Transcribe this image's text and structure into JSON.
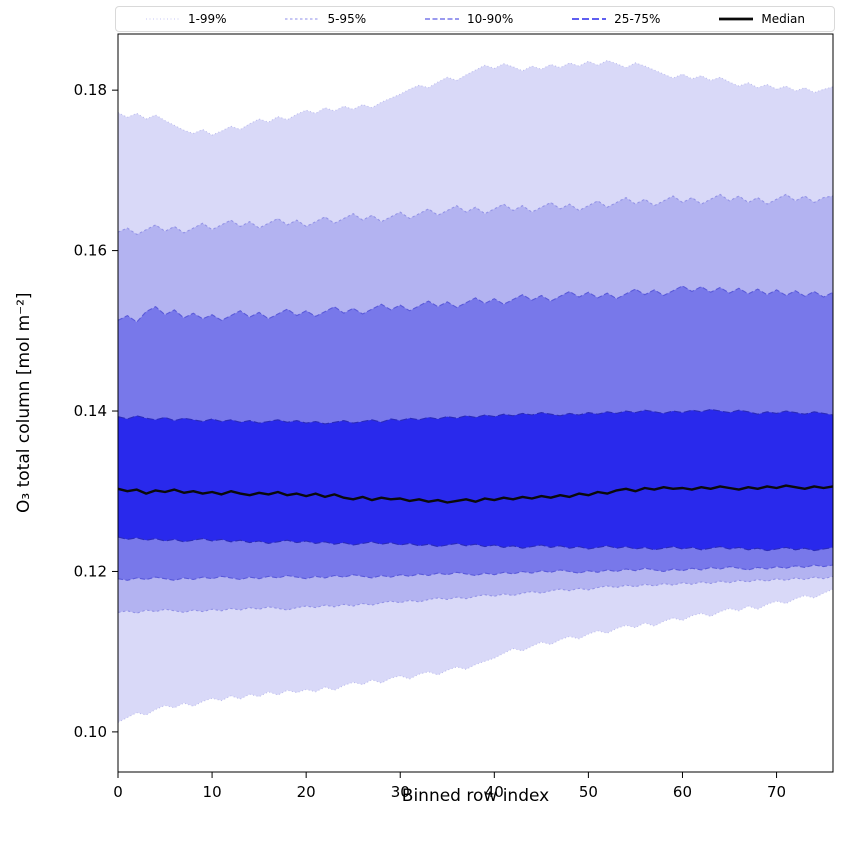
{
  "chart_data": {
    "type": "area",
    "title": "",
    "xlabel": "Binned row index",
    "ylabel": "O₃ total column [mol m⁻²]",
    "xlim": [
      0,
      76
    ],
    "ylim": [
      0.095,
      0.187
    ],
    "xticks": [
      0,
      10,
      20,
      30,
      40,
      50,
      60,
      70
    ],
    "yticks": [
      0.1,
      0.12,
      0.14,
      0.16,
      0.18
    ],
    "grid": false,
    "legend_position": "top",
    "x": [
      0,
      1,
      2,
      3,
      4,
      5,
      6,
      7,
      8,
      9,
      10,
      11,
      12,
      13,
      14,
      15,
      16,
      17,
      18,
      19,
      20,
      21,
      22,
      23,
      24,
      25,
      26,
      27,
      28,
      29,
      30,
      31,
      32,
      33,
      34,
      35,
      36,
      37,
      38,
      39,
      40,
      41,
      42,
      43,
      44,
      45,
      46,
      47,
      48,
      49,
      50,
      51,
      52,
      53,
      54,
      55,
      56,
      57,
      58,
      59,
      60,
      61,
      62,
      63,
      64,
      65,
      66,
      67,
      68,
      69,
      70,
      71,
      72,
      73,
      74,
      75,
      76
    ],
    "bands": [
      {
        "name": "1-99%",
        "fill": "#d9d9f8",
        "edge": "#bcbcee",
        "dash": "1 2.5",
        "lower": [
          0.1012,
          0.1018,
          0.1024,
          0.1021,
          0.1028,
          0.1033,
          0.103,
          0.1036,
          0.1032,
          0.1038,
          0.1042,
          0.1039,
          0.1045,
          0.1041,
          0.1047,
          0.1044,
          0.105,
          0.1046,
          0.1052,
          0.1049,
          0.1053,
          0.105,
          0.1056,
          0.1052,
          0.1058,
          0.1062,
          0.1059,
          0.1065,
          0.1061,
          0.1067,
          0.107,
          0.1066,
          0.1072,
          0.1075,
          0.1071,
          0.1077,
          0.1081,
          0.1078,
          0.1084,
          0.1088,
          0.1092,
          0.1098,
          0.1104,
          0.1101,
          0.1107,
          0.1112,
          0.1109,
          0.1115,
          0.1119,
          0.1116,
          0.1122,
          0.1126,
          0.1123,
          0.1129,
          0.1133,
          0.113,
          0.1136,
          0.1132,
          0.1138,
          0.1142,
          0.1139,
          0.1145,
          0.1148,
          0.1144,
          0.115,
          0.1154,
          0.1151,
          0.1157,
          0.1153,
          0.1159,
          0.1163,
          0.116,
          0.1166,
          0.117,
          0.1167,
          0.1173,
          0.1178
        ],
        "upper": [
          0.1772,
          0.1766,
          0.1771,
          0.1764,
          0.1769,
          0.1762,
          0.1756,
          0.175,
          0.1746,
          0.1751,
          0.1744,
          0.1749,
          0.1755,
          0.1751,
          0.1758,
          0.1764,
          0.176,
          0.1767,
          0.1763,
          0.177,
          0.1775,
          0.1771,
          0.1778,
          0.1774,
          0.178,
          0.1776,
          0.1782,
          0.1778,
          0.1785,
          0.179,
          0.1795,
          0.1801,
          0.1806,
          0.1803,
          0.181,
          0.1816,
          0.1812,
          0.1819,
          0.1825,
          0.1831,
          0.1827,
          0.1833,
          0.1829,
          0.1824,
          0.183,
          0.1826,
          0.1832,
          0.1828,
          0.1834,
          0.183,
          0.1836,
          0.1831,
          0.1837,
          0.1833,
          0.1828,
          0.1834,
          0.183,
          0.1825,
          0.182,
          0.1815,
          0.182,
          0.1814,
          0.1818,
          0.1812,
          0.1816,
          0.181,
          0.1805,
          0.1809,
          0.1803,
          0.1807,
          0.1801,
          0.1805,
          0.1799,
          0.1803,
          0.1797,
          0.1801,
          0.1804
        ]
      },
      {
        "name": "5-95%",
        "fill": "#b3b3f1",
        "edge": "#9393e6",
        "dash": "2.5 2.5",
        "lower": [
          0.1149,
          0.1151,
          0.1148,
          0.1152,
          0.115,
          0.1153,
          0.1151,
          0.1149,
          0.1152,
          0.115,
          0.1153,
          0.1151,
          0.1154,
          0.1152,
          0.1155,
          0.1153,
          0.1156,
          0.1154,
          0.1152,
          0.1155,
          0.1157,
          0.1155,
          0.1158,
          0.1156,
          0.1159,
          0.1157,
          0.116,
          0.1158,
          0.1161,
          0.1163,
          0.1161,
          0.1164,
          0.1162,
          0.1165,
          0.1167,
          0.1165,
          0.1168,
          0.1166,
          0.1169,
          0.1171,
          0.1169,
          0.1172,
          0.117,
          0.1173,
          0.1175,
          0.1173,
          0.1176,
          0.1178,
          0.1176,
          0.1179,
          0.1177,
          0.118,
          0.1182,
          0.118,
          0.1183,
          0.1181,
          0.1184,
          0.1182,
          0.1185,
          0.1183,
          0.1186,
          0.1184,
          0.1187,
          0.1185,
          0.1188,
          0.1186,
          0.1189,
          0.1187,
          0.119,
          0.1188,
          0.1191,
          0.1189,
          0.1192,
          0.119,
          0.1193,
          0.1191,
          0.1194
        ],
        "upper": [
          0.1623,
          0.1628,
          0.162,
          0.1626,
          0.1632,
          0.1624,
          0.163,
          0.1622,
          0.1628,
          0.1634,
          0.1626,
          0.1632,
          0.1638,
          0.163,
          0.1636,
          0.1628,
          0.1634,
          0.164,
          0.1632,
          0.1638,
          0.163,
          0.1636,
          0.1642,
          0.1634,
          0.164,
          0.1646,
          0.1638,
          0.1644,
          0.1636,
          0.1642,
          0.1648,
          0.164,
          0.1646,
          0.1652,
          0.1644,
          0.165,
          0.1656,
          0.1648,
          0.1654,
          0.1646,
          0.1652,
          0.1658,
          0.165,
          0.1656,
          0.1648,
          0.1654,
          0.166,
          0.1652,
          0.1658,
          0.165,
          0.1656,
          0.1662,
          0.1654,
          0.166,
          0.1666,
          0.1658,
          0.1664,
          0.1656,
          0.1662,
          0.1668,
          0.166,
          0.1666,
          0.1658,
          0.1664,
          0.167,
          0.1662,
          0.1668,
          0.166,
          0.1666,
          0.1658,
          0.1664,
          0.167,
          0.1662,
          0.1668,
          0.166,
          0.1666,
          0.1668
        ]
      },
      {
        "name": "10-90%",
        "fill": "#7878ea",
        "edge": "#5a5ad9",
        "dash": "5 2.5",
        "lower": [
          0.1191,
          0.1189,
          0.1192,
          0.119,
          0.1193,
          0.1191,
          0.1189,
          0.1192,
          0.119,
          0.1193,
          0.1191,
          0.1194,
          0.1192,
          0.119,
          0.1193,
          0.1191,
          0.1194,
          0.1192,
          0.1195,
          0.1193,
          0.1191,
          0.1194,
          0.1192,
          0.1195,
          0.1193,
          0.1196,
          0.1194,
          0.1192,
          0.1195,
          0.1193,
          0.1196,
          0.1194,
          0.1197,
          0.1195,
          0.1198,
          0.1196,
          0.1199,
          0.1197,
          0.1195,
          0.1198,
          0.1196,
          0.1199,
          0.1197,
          0.12,
          0.1198,
          0.1201,
          0.1199,
          0.1202,
          0.12,
          0.1198,
          0.1201,
          0.1199,
          0.1202,
          0.12,
          0.1203,
          0.1201,
          0.1204,
          0.1202,
          0.12,
          0.1203,
          0.1201,
          0.1204,
          0.1202,
          0.1205,
          0.1203,
          0.1206,
          0.1204,
          0.1202,
          0.1205,
          0.1203,
          0.1206,
          0.1204,
          0.1207,
          0.1205,
          0.1208,
          0.1206,
          0.1208
        ],
        "upper": [
          0.1513,
          0.1519,
          0.1511,
          0.1524,
          0.153,
          0.152,
          0.1526,
          0.1516,
          0.1522,
          0.1515,
          0.152,
          0.1513,
          0.1519,
          0.1525,
          0.1517,
          0.1523,
          0.1515,
          0.1521,
          0.1527,
          0.1519,
          0.1525,
          0.1518,
          0.1524,
          0.153,
          0.1522,
          0.1528,
          0.1521,
          0.1527,
          0.1533,
          0.1526,
          0.1532,
          0.1525,
          0.1531,
          0.1537,
          0.153,
          0.1536,
          0.1529,
          0.1535,
          0.1541,
          0.1534,
          0.154,
          0.1533,
          0.1539,
          0.1545,
          0.1538,
          0.1544,
          0.1537,
          0.1543,
          0.1549,
          0.1542,
          0.1548,
          0.1541,
          0.1547,
          0.154,
          0.1546,
          0.1552,
          0.1545,
          0.1551,
          0.1544,
          0.155,
          0.1556,
          0.1549,
          0.1555,
          0.1548,
          0.1554,
          0.1547,
          0.1553,
          0.1546,
          0.1552,
          0.1545,
          0.1551,
          0.1544,
          0.155,
          0.1543,
          0.1549,
          0.1542,
          0.1548
        ]
      },
      {
        "name": "25-75%",
        "fill": "#2929ec",
        "edge": "#2b2bb8",
        "dash": "7 3",
        "lower": [
          0.1243,
          0.124,
          0.1242,
          0.1239,
          0.1241,
          0.1238,
          0.124,
          0.1237,
          0.1239,
          0.1241,
          0.1238,
          0.124,
          0.1237,
          0.1239,
          0.1236,
          0.1238,
          0.1235,
          0.1237,
          0.1239,
          0.1236,
          0.1238,
          0.1235,
          0.1237,
          0.1234,
          0.1236,
          0.1233,
          0.1235,
          0.1237,
          0.1234,
          0.1236,
          0.1233,
          0.1235,
          0.1232,
          0.1234,
          0.1231,
          0.1233,
          0.1235,
          0.1232,
          0.1234,
          0.1231,
          0.1233,
          0.123,
          0.1232,
          0.1229,
          0.1231,
          0.1233,
          0.123,
          0.1232,
          0.1229,
          0.1231,
          0.1228,
          0.123,
          0.1232,
          0.1229,
          0.1231,
          0.1228,
          0.123,
          0.1227,
          0.1229,
          0.1231,
          0.1228,
          0.123,
          0.1227,
          0.1229,
          0.1231,
          0.1228,
          0.123,
          0.1227,
          0.1229,
          0.1226,
          0.1228,
          0.123,
          0.1227,
          0.1229,
          0.1226,
          0.1228,
          0.123
        ],
        "upper": [
          0.1393,
          0.139,
          0.1394,
          0.1391,
          0.1389,
          0.1392,
          0.1388,
          0.1391,
          0.1389,
          0.1387,
          0.139,
          0.1387,
          0.1389,
          0.1386,
          0.1388,
          0.1385,
          0.1387,
          0.1389,
          0.1386,
          0.1388,
          0.1385,
          0.1387,
          0.1384,
          0.1386,
          0.1388,
          0.1385,
          0.1387,
          0.1389,
          0.1386,
          0.139,
          0.1388,
          0.1391,
          0.1389,
          0.1392,
          0.139,
          0.1393,
          0.1391,
          0.1394,
          0.1392,
          0.1395,
          0.1393,
          0.1396,
          0.1394,
          0.1397,
          0.1395,
          0.1398,
          0.1396,
          0.1394,
          0.1397,
          0.1395,
          0.1398,
          0.1396,
          0.1399,
          0.1397,
          0.14,
          0.1398,
          0.1401,
          0.1399,
          0.1397,
          0.14,
          0.1398,
          0.1401,
          0.1399,
          0.1402,
          0.14,
          0.1398,
          0.1401,
          0.1399,
          0.1396,
          0.1399,
          0.1397,
          0.14,
          0.1398,
          0.1396,
          0.1399,
          0.1397,
          0.1395
        ]
      }
    ],
    "median": {
      "name": "Median",
      "color": "#0a0a0a",
      "width": 2.4,
      "values": [
        0.1303,
        0.13,
        0.1302,
        0.1297,
        0.1301,
        0.1299,
        0.1302,
        0.1298,
        0.13,
        0.1297,
        0.1299,
        0.1296,
        0.13,
        0.1297,
        0.1295,
        0.1298,
        0.1296,
        0.1299,
        0.1295,
        0.1297,
        0.1294,
        0.1297,
        0.1293,
        0.1296,
        0.1292,
        0.129,
        0.1293,
        0.1289,
        0.1292,
        0.129,
        0.1291,
        0.1288,
        0.129,
        0.1287,
        0.1289,
        0.1286,
        0.1288,
        0.129,
        0.1287,
        0.1291,
        0.1289,
        0.1292,
        0.129,
        0.1293,
        0.1291,
        0.1294,
        0.1292,
        0.1295,
        0.1293,
        0.1297,
        0.1295,
        0.1299,
        0.1297,
        0.1301,
        0.1303,
        0.13,
        0.1304,
        0.1302,
        0.1305,
        0.1303,
        0.1304,
        0.1302,
        0.1305,
        0.1303,
        0.1306,
        0.1304,
        0.1302,
        0.1305,
        0.1303,
        0.1306,
        0.1304,
        0.1307,
        0.1305,
        0.1303,
        0.1306,
        0.1304,
        0.1306
      ]
    },
    "legend_entries": [
      "1-99%",
      "5-95%",
      "10-90%",
      "25-75%",
      "Median"
    ]
  }
}
